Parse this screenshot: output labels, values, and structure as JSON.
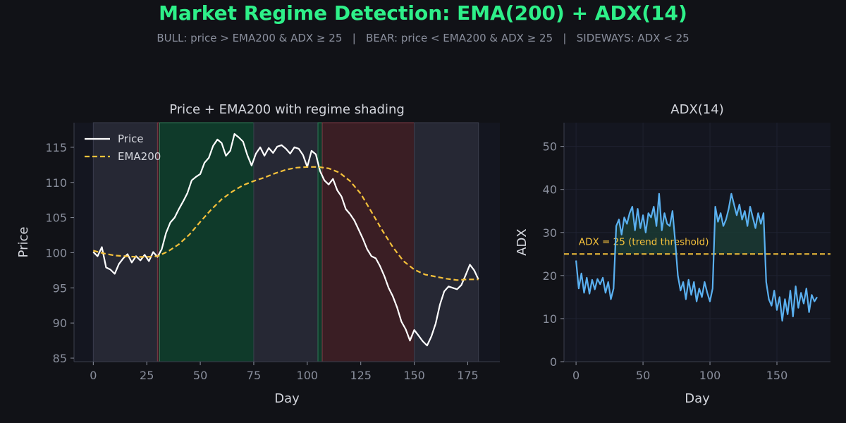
{
  "page": {
    "title": "Market Regime Detection: EMA(200) + ADX(14)",
    "subtitle": "BULL: price > EMA200 & ADX ≥ 25   |   BEAR: price < EMA200 & ADX ≥ 25   |   SIDEWAYS: ADX < 25"
  },
  "colors": {
    "background": "#111217",
    "panel": "#141620",
    "title": "#2ef089",
    "price": "#ffffff",
    "ema": "#f5c13b",
    "adx": "#5ab0f0",
    "bull_shade": "#0f3a2a",
    "bear_shade": "#3a1e24",
    "sideways_shade": "#262834",
    "text": "#d4d6dd",
    "tick": "#8a8f9d"
  },
  "chart_data": [
    {
      "type": "line",
      "title": "Price + EMA200 with regime shading",
      "xlabel": "Day",
      "ylabel": "Price",
      "xlim": [
        -9,
        190
      ],
      "ylim": [
        84.5,
        118.5
      ],
      "xticks": [
        0,
        25,
        50,
        75,
        100,
        125,
        150,
        175
      ],
      "yticks": [
        85,
        90,
        95,
        100,
        105,
        110,
        115
      ],
      "legend": "top-left",
      "grid": false,
      "regimes": [
        {
          "regime": "SIDEWAYS",
          "start": 0,
          "end": 30
        },
        {
          "regime": "BEAR",
          "start": 30,
          "end": 31
        },
        {
          "regime": "BULL",
          "start": 31,
          "end": 75
        },
        {
          "regime": "SIDEWAYS",
          "start": 75,
          "end": 105
        },
        {
          "regime": "BULL",
          "start": 105,
          "end": 107
        },
        {
          "regime": "BEAR",
          "start": 107,
          "end": 150
        },
        {
          "regime": "SIDEWAYS",
          "start": 150,
          "end": 180
        }
      ],
      "series": [
        {
          "name": "Price",
          "x": [
            0,
            2,
            4,
            6,
            8,
            10,
            12,
            14,
            16,
            18,
            20,
            22,
            24,
            26,
            28,
            30,
            32,
            34,
            36,
            38,
            40,
            42,
            44,
            46,
            48,
            50,
            52,
            54,
            56,
            58,
            60,
            62,
            64,
            66,
            68,
            70,
            72,
            74,
            76,
            78,
            80,
            82,
            84,
            86,
            88,
            90,
            92,
            94,
            96,
            98,
            100,
            102,
            104,
            106,
            108,
            110,
            112,
            114,
            116,
            118,
            120,
            122,
            124,
            126,
            128,
            130,
            132,
            134,
            136,
            138,
            140,
            142,
            144,
            146,
            148,
            150,
            152,
            154,
            156,
            158,
            160,
            162,
            164,
            166,
            168,
            170,
            172,
            174,
            176,
            178,
            180
          ],
          "values": [
            100.1,
            99.5,
            100.8,
            97.9,
            97.6,
            97.0,
            98.4,
            99.2,
            99.8,
            98.6,
            99.5,
            98.9,
            99.7,
            98.8,
            100.1,
            99.4,
            100.5,
            102.8,
            104.3,
            105.0,
            106.2,
            107.3,
            108.5,
            110.3,
            110.8,
            111.2,
            112.8,
            113.5,
            115.2,
            116.1,
            115.6,
            113.8,
            114.5,
            116.9,
            116.4,
            115.8,
            113.9,
            112.4,
            114.1,
            115.0,
            113.8,
            114.9,
            114.2,
            115.1,
            115.3,
            114.8,
            114.1,
            115.0,
            114.8,
            113.9,
            112.2,
            114.5,
            114.0,
            111.6,
            110.3,
            109.7,
            110.5,
            108.9,
            108.0,
            106.2,
            105.5,
            104.6,
            103.3,
            102.0,
            100.5,
            99.5,
            99.2,
            98.1,
            96.7,
            95.0,
            93.8,
            92.2,
            90.2,
            89.1,
            87.5,
            89.0,
            88.2,
            87.4,
            86.8,
            88.1,
            89.9,
            92.6,
            94.5,
            95.2,
            95.0,
            94.8,
            95.4,
            96.8,
            98.3,
            97.5,
            96.2
          ]
        },
        {
          "name": "EMA200",
          "x": [
            0,
            5,
            10,
            15,
            20,
            25,
            30,
            35,
            40,
            45,
            50,
            55,
            60,
            65,
            70,
            75,
            80,
            85,
            90,
            95,
            100,
            105,
            110,
            115,
            120,
            125,
            130,
            135,
            140,
            145,
            150,
            155,
            160,
            165,
            170,
            175,
            180
          ],
          "values": [
            100.3,
            99.9,
            99.6,
            99.5,
            99.4,
            99.4,
            99.5,
            100.2,
            101.2,
            102.6,
            104.4,
            106.1,
            107.6,
            108.7,
            109.6,
            110.2,
            110.7,
            111.3,
            111.8,
            112.1,
            112.2,
            112.2,
            112.0,
            111.4,
            110.2,
            108.4,
            105.8,
            103.2,
            100.8,
            98.8,
            97.6,
            96.9,
            96.6,
            96.3,
            96.1,
            96.2,
            96.2
          ]
        }
      ]
    },
    {
      "type": "line",
      "title": "ADX(14)",
      "xlabel": "Day",
      "ylabel": "ADX",
      "xlim": [
        -9,
        190
      ],
      "ylim": [
        0,
        55.5
      ],
      "xticks": [
        0,
        50,
        100,
        150
      ],
      "yticks": [
        0,
        10,
        20,
        30,
        40,
        50
      ],
      "grid": true,
      "threshold": {
        "value": 25,
        "label": "ADX = 25 (trend threshold)"
      },
      "series": [
        {
          "name": "ADX",
          "x": [
            0,
            2,
            4,
            6,
            8,
            10,
            12,
            14,
            16,
            18,
            20,
            22,
            24,
            26,
            28,
            30,
            32,
            34,
            36,
            38,
            40,
            42,
            44,
            46,
            48,
            50,
            52,
            54,
            56,
            58,
            60,
            62,
            64,
            66,
            68,
            70,
            72,
            74,
            76,
            78,
            80,
            82,
            84,
            86,
            88,
            90,
            92,
            94,
            96,
            98,
            100,
            102,
            104,
            106,
            108,
            110,
            112,
            114,
            116,
            118,
            120,
            122,
            124,
            126,
            128,
            130,
            132,
            134,
            136,
            138,
            140,
            142,
            144,
            146,
            148,
            150,
            152,
            154,
            156,
            158,
            160,
            162,
            164,
            166,
            168,
            170,
            172,
            174,
            176,
            178,
            180
          ],
          "values": [
            23.5,
            17.0,
            20.5,
            16.0,
            19.5,
            15.8,
            19.0,
            16.8,
            19.2,
            18.0,
            19.5,
            16.0,
            18.5,
            14.5,
            17.0,
            31.5,
            33.0,
            29.5,
            33.5,
            32.0,
            34.5,
            36.0,
            30.5,
            35.5,
            31.0,
            34.0,
            30.0,
            34.5,
            33.5,
            36.0,
            31.5,
            39.0,
            30.5,
            34.5,
            32.0,
            31.5,
            35.0,
            28.0,
            20.0,
            16.5,
            18.5,
            14.5,
            19.0,
            15.5,
            18.5,
            14.0,
            17.0,
            15.0,
            18.5,
            16.0,
            14.0,
            17.0,
            36.0,
            32.5,
            34.5,
            31.5,
            33.0,
            35.5,
            39.0,
            36.5,
            34.0,
            36.5,
            33.0,
            35.0,
            31.5,
            36.0,
            33.5,
            31.0,
            34.5,
            32.0,
            34.5,
            18.5,
            14.5,
            13.0,
            16.5,
            12.0,
            15.0,
            9.5,
            14.5,
            11.0,
            16.5,
            10.5,
            17.5,
            12.5,
            16.0,
            13.5,
            17.0,
            11.5,
            15.5,
            14.0,
            15.0
          ]
        }
      ]
    }
  ]
}
